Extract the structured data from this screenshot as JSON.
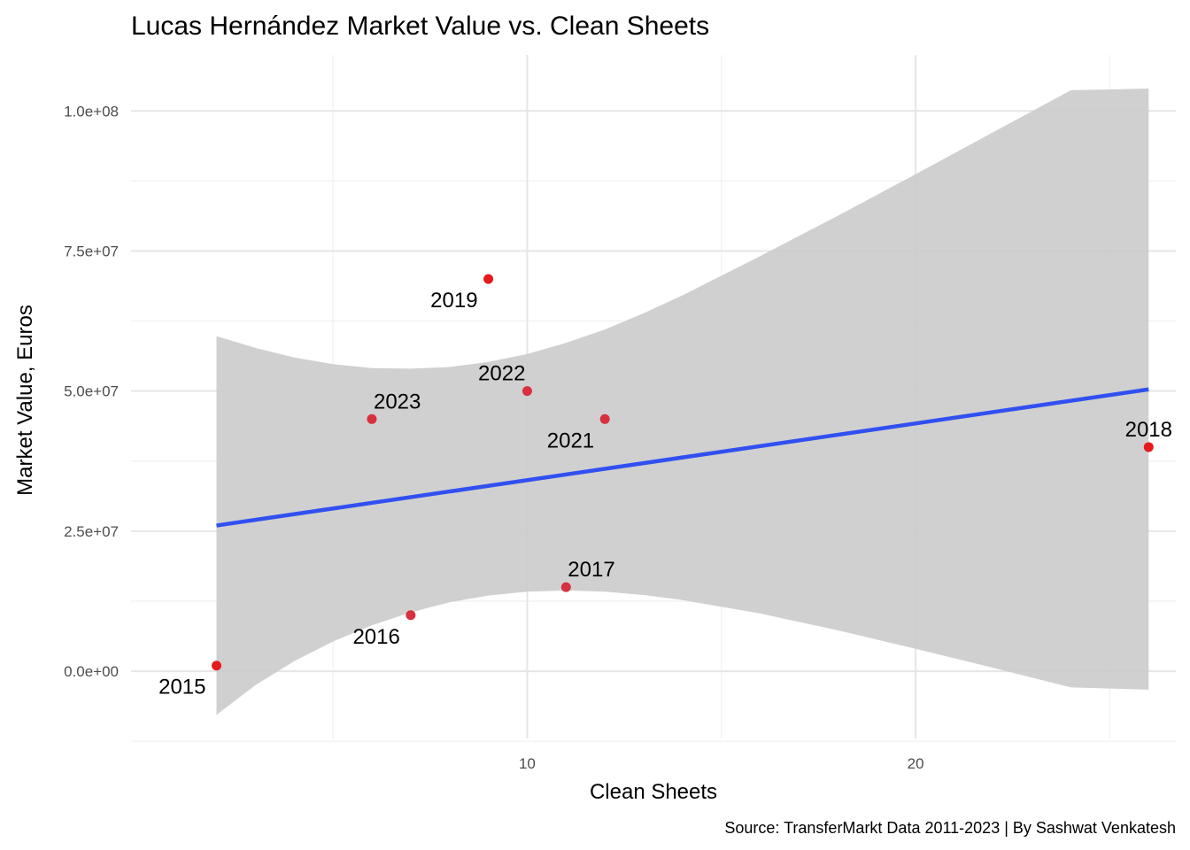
{
  "chart_data": {
    "type": "scatter",
    "title": "Lucas Hernández Market Value vs. Clean Sheets",
    "xlabel": "Clean Sheets",
    "ylabel": "Market Value, Euros",
    "caption": "Source: TransferMarkt Data 2011-2023 | By Sashwat Venkatesh",
    "xlim": [
      -0.2,
      26.7
    ],
    "ylim": [
      -12000000,
      110000000
    ],
    "x_ticks": [
      {
        "value": 10,
        "label": "10"
      },
      {
        "value": 20,
        "label": "20"
      }
    ],
    "x_minor_ticks": [
      5,
      15,
      25
    ],
    "y_ticks": [
      {
        "value": 0,
        "label": "0.0e+00"
      },
      {
        "value": 25000000,
        "label": "2.5e+07"
      },
      {
        "value": 50000000,
        "label": "5.0e+07"
      },
      {
        "value": 75000000,
        "label": "7.5e+07"
      },
      {
        "value": 100000000,
        "label": "1.0e+08"
      }
    ],
    "y_minor_ticks": [
      -12500000,
      12500000,
      37500000,
      62500000,
      87500000
    ],
    "points": [
      {
        "label": "2015",
        "x": 2,
        "y": 1000000,
        "color": "#e41a1c",
        "label_pos": "below-left"
      },
      {
        "label": "2016",
        "x": 7,
        "y": 10000000,
        "color": "#d7303f",
        "label_pos": "below-left"
      },
      {
        "label": "2017",
        "x": 11,
        "y": 15000000,
        "color": "#d7303f",
        "label_pos": "above-right"
      },
      {
        "label": "2018",
        "x": 26,
        "y": 40000000,
        "color": "#e41a1c",
        "label_pos": "above"
      },
      {
        "label": "2019",
        "x": 9,
        "y": 70000000,
        "color": "#e41a1c",
        "label_pos": "below-left"
      },
      {
        "label": "2021",
        "x": 12,
        "y": 45000000,
        "color": "#d7303f",
        "label_pos": "below-left"
      },
      {
        "label": "2022",
        "x": 10,
        "y": 50000000,
        "color": "#d7303f",
        "label_pos": "above-left"
      },
      {
        "label": "2023",
        "x": 6,
        "y": 45000000,
        "color": "#d7303f",
        "label_pos": "above-right"
      }
    ],
    "trend_line": {
      "method": "lm",
      "color": "#3050f0",
      "x": [
        2,
        26
      ],
      "y": [
        26000000,
        50300000
      ]
    },
    "confidence_band": {
      "color": "#cccccc",
      "x": [
        2,
        3,
        4,
        5,
        6,
        7,
        8,
        9,
        10,
        11,
        12,
        13,
        14,
        16,
        18,
        20,
        22,
        24,
        26
      ],
      "lower": [
        -7800000,
        -2500000,
        1800000,
        5300000,
        8200000,
        10500000,
        12300000,
        13500000,
        14200000,
        14400000,
        14200000,
        13600000,
        12700000,
        10300000,
        7300000,
        4000000,
        600000,
        -2900000,
        -3300000
      ],
      "upper": [
        59800000,
        57700000,
        56000000,
        54800000,
        54100000,
        54000000,
        54300000,
        55200000,
        56600000,
        58600000,
        61000000,
        63900000,
        67100000,
        74100000,
        81300000,
        88700000,
        96200000,
        103700000,
        104000000
      ]
    },
    "grid": true,
    "legend": "none"
  }
}
